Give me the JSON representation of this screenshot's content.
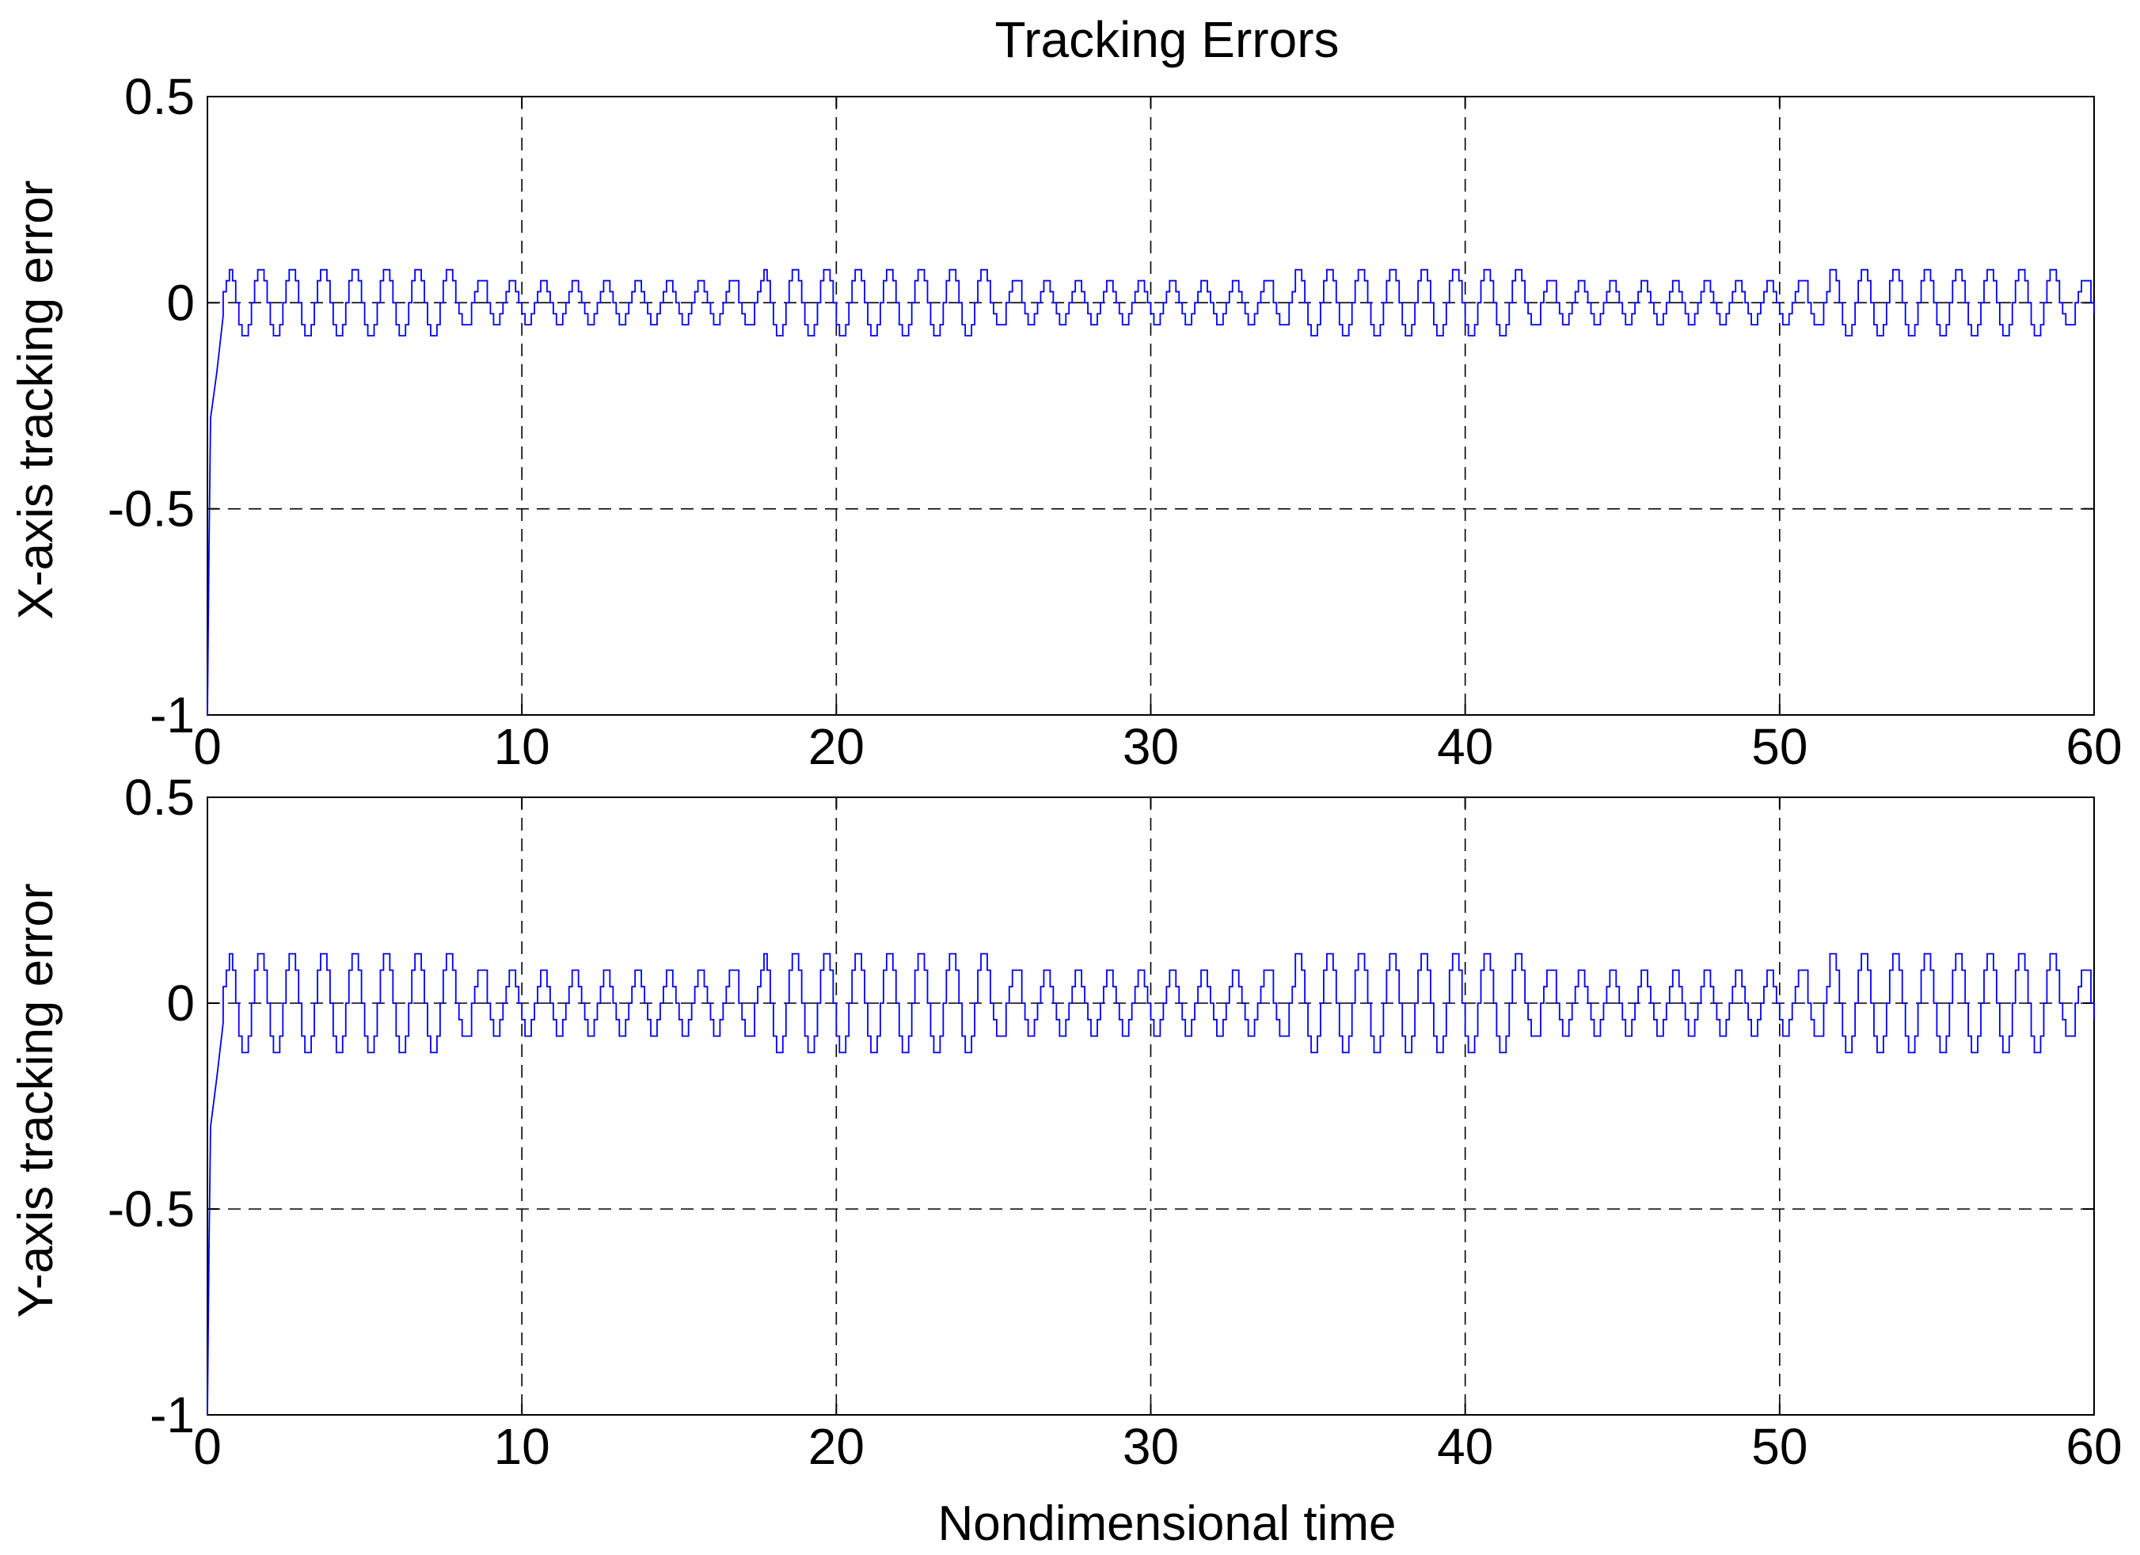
{
  "chart_data": [
    {
      "type": "line",
      "title": "Tracking Errors",
      "xlabel": "",
      "ylabel": "X-axis tracking error",
      "xlim": [
        0,
        60
      ],
      "ylim": [
        -1,
        0.5
      ],
      "xticks": [
        "0",
        "10",
        "20",
        "30",
        "40",
        "50",
        "60"
      ],
      "yticks": [
        "0.5",
        "0",
        "-0.5",
        "-1"
      ],
      "grid": true,
      "series": [
        {
          "color": "#0000ff",
          "signal": {
            "initial_value": -1,
            "transient_end_time": 0.3,
            "transient_end_value": -0.28,
            "oscillation_amplitude": 0.08,
            "oscillation_period": 1.0,
            "step_time": 0.1,
            "settle_time": 0.5
          }
        }
      ]
    },
    {
      "type": "line",
      "title": "",
      "xlabel": "Nondimensional time",
      "ylabel": "Y-axis tracking error",
      "xlim": [
        0,
        60
      ],
      "ylim": [
        -1,
        0.5
      ],
      "xticks": [
        "0",
        "10",
        "20",
        "30",
        "40",
        "50",
        "60"
      ],
      "yticks": [
        "0.5",
        "0",
        "-0.5",
        "-1"
      ],
      "grid": true,
      "series": [
        {
          "color": "#0000ff",
          "signal": {
            "initial_value": -1,
            "transient_end_time": 0.3,
            "transient_end_value": -0.3,
            "oscillation_amplitude": 0.12,
            "oscillation_period": 1.0,
            "step_time": 0.1,
            "settle_time": 0.5
          }
        }
      ]
    }
  ]
}
